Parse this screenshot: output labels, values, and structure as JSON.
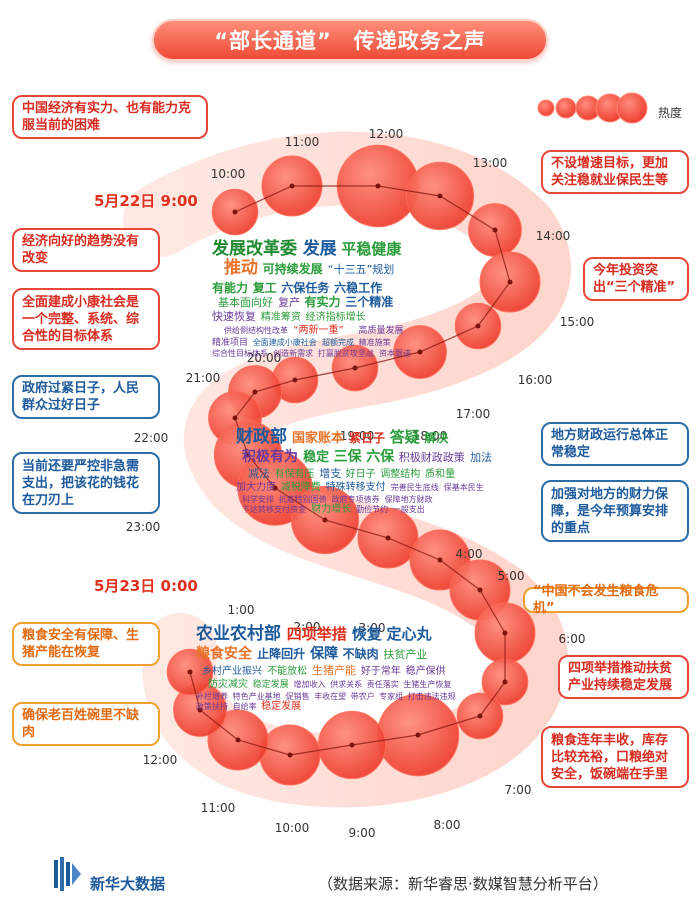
{
  "title": {
    "part1": "“部长通道”",
    "part2": "传递政务之声"
  },
  "legend": {
    "label": "热度"
  },
  "dates": {
    "day1": "5月22日 9:00",
    "day2": "5月23日 0:00"
  },
  "notes_left": [
    {
      "text": "中国经济有实力、也有能力克服当前的困难",
      "color": "red"
    },
    {
      "text": "经济向好的趋势没有改变",
      "color": "red"
    },
    {
      "text": "全面建成小康社会是一个完整、系统、综合性的目标体系",
      "color": "red"
    },
    {
      "text": "政府过紧日子，人民群众过好日子",
      "color": "blue"
    },
    {
      "text": "当前还要严控非急需支出，把该花的钱花在刀刃上",
      "color": "blue"
    },
    {
      "text": "粮食安全有保障、生猪产能在恢复",
      "color": "orange"
    },
    {
      "text": "确保老百姓碗里不缺肉",
      "color": "orange"
    }
  ],
  "notes_right": [
    {
      "text": "不设增速目标，更加关注稳就业保民生等",
      "color": "red"
    },
    {
      "text": "今年投资突出“三个精准”",
      "color": "red"
    },
    {
      "text": "地方财政运行总体正常稳定",
      "color": "blue"
    },
    {
      "text": "加强对地方的财力保障，是今年预算安排的重点",
      "color": "blue"
    },
    {
      "text": "“中国不会发生粮食危机”",
      "color": "orange"
    },
    {
      "text": "四项举措推动扶贫产业持续稳定发展",
      "color": "red"
    },
    {
      "text": "粮食连年丰收，库存比较充裕，口粮绝对安全，饭碗端在手里",
      "color": "red"
    }
  ],
  "clusters": [
    {
      "name": "发展改革委",
      "color": "#2a9d3a",
      "words": [
        {
          "t": "发展改革委",
          "s": 17,
          "c": "#1f8a2f"
        },
        {
          "t": "发展",
          "s": 17,
          "c": "#1d5a9c"
        },
        {
          "t": "平稳健康",
          "s": 15,
          "c": "#2a9d3a"
        },
        {
          "t": "推动",
          "s": 17,
          "c": "#e8732a"
        },
        {
          "t": "可持续发展",
          "s": 12,
          "c": "#2a9d3a"
        },
        {
          "t": "“十三五”规划",
          "s": 11,
          "c": "#1d5a9c"
        },
        {
          "t": "有能力",
          "s": 12,
          "c": "#2a9d3a"
        },
        {
          "t": "复工",
          "s": 12,
          "c": "#2a9d3a"
        },
        {
          "t": "六保任务",
          "s": 12,
          "c": "#1d5a9c"
        },
        {
          "t": "六稳工作",
          "s": 12,
          "c": "#1d5a9c"
        },
        {
          "t": "基本面向好",
          "s": 11,
          "c": "#2a9d3a"
        },
        {
          "t": "复产",
          "s": 11,
          "c": "#6a3a9a"
        },
        {
          "t": "有实力",
          "s": 12,
          "c": "#2a9d3a"
        },
        {
          "t": "三个精准",
          "s": 12,
          "c": "#1d5a9c"
        },
        {
          "t": "快速恢复",
          "s": 11,
          "c": "#6a3a9a"
        },
        {
          "t": "精准筹资",
          "s": 10,
          "c": "#2a9d3a"
        },
        {
          "t": "经济指标增长",
          "s": 10,
          "c": "#2a9d3a"
        },
        {
          "t": "供给侧结构性改革",
          "s": 8,
          "c": "#6a3a9a"
        },
        {
          "t": "“两新一重”",
          "s": 10,
          "c": "#e0301e"
        },
        {
          "t": "高质量发展",
          "s": 9,
          "c": "#6a3a9a"
        },
        {
          "t": "精准项目",
          "s": 9,
          "c": "#6a3a9a"
        },
        {
          "t": "全面建成小康社会",
          "s": 8,
          "c": "#1d5a9c"
        },
        {
          "t": "超额完成",
          "s": 8,
          "c": "#1d5a9c"
        },
        {
          "t": "精准施策",
          "s": 8,
          "c": "#6a3a9a"
        },
        {
          "t": "综合性目标体系",
          "s": 8,
          "c": "#6a3a9a"
        },
        {
          "t": "创造新需求",
          "s": 8,
          "c": "#6a3a9a"
        },
        {
          "t": "打赢脱贫攻坚战",
          "s": 8,
          "c": "#6a3a9a"
        },
        {
          "t": "资本跟进",
          "s": 8,
          "c": "#6a3a9a"
        },
        {
          "t": "通过投资补短板",
          "s": 8,
          "c": "#1d5a9c"
        },
        {
          "t": "扩大内需",
          "s": 10,
          "c": "#2a9d3a"
        }
      ]
    },
    {
      "name": "财政部",
      "color": "#1d5a9c",
      "words": [
        {
          "t": "财政部",
          "s": 17,
          "c": "#1d5a9c"
        },
        {
          "t": "国家账本",
          "s": 13,
          "c": "#e8732a"
        },
        {
          "t": "紧日子",
          "s": 12,
          "c": "#e0301e"
        },
        {
          "t": "答疑",
          "s": 15,
          "c": "#2a9d3a"
        },
        {
          "t": "解决",
          "s": 12,
          "c": "#2a9d3a"
        },
        {
          "t": "积极有为",
          "s": 14,
          "c": "#6a3a9a"
        },
        {
          "t": "稳定",
          "s": 13,
          "c": "#2a9d3a"
        },
        {
          "t": "三保",
          "s": 14,
          "c": "#2a9d3a"
        },
        {
          "t": "六保",
          "s": 14,
          "c": "#2a9d3a"
        },
        {
          "t": "积极财政政策",
          "s": 11,
          "c": "#6a3a9a"
        },
        {
          "t": "加法",
          "s": 11,
          "c": "#1d5a9c"
        },
        {
          "t": "减法",
          "s": 11,
          "c": "#1d5a9c"
        },
        {
          "t": "有保有压",
          "s": 10,
          "c": "#2a9d3a"
        },
        {
          "t": "增支",
          "s": 11,
          "c": "#1d5a9c"
        },
        {
          "t": "好日子",
          "s": 10,
          "c": "#2a9d3a"
        },
        {
          "t": "调整结构",
          "s": 10,
          "c": "#2a9d3a"
        },
        {
          "t": "质和量",
          "s": 10,
          "c": "#2a9d3a"
        },
        {
          "t": "加大力度",
          "s": 10,
          "c": "#6a3a9a"
        },
        {
          "t": "减税降费",
          "s": 10,
          "c": "#2a9d3a"
        },
        {
          "t": "特殊转移支付",
          "s": 10,
          "c": "#1d5a9c"
        },
        {
          "t": "完善民生底线",
          "s": 8,
          "c": "#6a3a9a"
        },
        {
          "t": "保基本民生",
          "s": 8,
          "c": "#6a3a9a"
        },
        {
          "t": "科学安排",
          "s": 8,
          "c": "#6a3a9a"
        },
        {
          "t": "抗疫特别国债",
          "s": 8,
          "c": "#6a3a9a"
        },
        {
          "t": "政府专项债券",
          "s": 8,
          "c": "#6a3a9a"
        },
        {
          "t": "保障地方财政",
          "s": 8,
          "c": "#6a3a9a"
        },
        {
          "t": "下达转移支付资金",
          "s": 8,
          "c": "#6a3a9a"
        },
        {
          "t": "财力增长",
          "s": 10,
          "c": "#2a9d3a"
        },
        {
          "t": "勤俭节约",
          "s": 8,
          "c": "#6a3a9a"
        },
        {
          "t": "一般支出",
          "s": 8,
          "c": "#6a3a9a"
        }
      ]
    },
    {
      "name": "农业农村部",
      "color": "#6a3a9a",
      "words": [
        {
          "t": "农业农村部",
          "s": 17,
          "c": "#1d5a9c"
        },
        {
          "t": "四项举措",
          "s": 15,
          "c": "#e0301e"
        },
        {
          "t": "恢复",
          "s": 15,
          "c": "#1d5a9c"
        },
        {
          "t": "定心丸",
          "s": 15,
          "c": "#1d5a9c"
        },
        {
          "t": "粮食安全",
          "s": 14,
          "c": "#e8732a"
        },
        {
          "t": "止降回升",
          "s": 12,
          "c": "#1d5a9c"
        },
        {
          "t": "保障",
          "s": 14,
          "c": "#1d5a9c"
        },
        {
          "t": "不缺肉",
          "s": 12,
          "c": "#1d5a9c"
        },
        {
          "t": "扶贫产业",
          "s": 11,
          "c": "#2a9d3a"
        },
        {
          "t": "乡村产业振兴",
          "s": 10,
          "c": "#1d5a9c"
        },
        {
          "t": "不能放松",
          "s": 10,
          "c": "#2a9d3a"
        },
        {
          "t": "生猪产能",
          "s": 11,
          "c": "#e8732a"
        },
        {
          "t": "好于常年",
          "s": 10,
          "c": "#6a3a9a"
        },
        {
          "t": "稳产保供",
          "s": 10,
          "c": "#6a3a9a"
        },
        {
          "t": "防灾减灾",
          "s": 10,
          "c": "#2a9d3a"
        },
        {
          "t": "稳定发展",
          "s": 9,
          "c": "#2a9d3a"
        },
        {
          "t": "增加收入",
          "s": 8,
          "c": "#6a3a9a"
        },
        {
          "t": "供求关系",
          "s": 8,
          "c": "#6a3a9a"
        },
        {
          "t": "责任落实",
          "s": 8,
          "c": "#6a3a9a"
        },
        {
          "t": "生猪生产恢复",
          "s": 8,
          "c": "#6a3a9a"
        },
        {
          "t": "补栏增养",
          "s": 8,
          "c": "#6a3a9a"
        },
        {
          "t": "特色产业基地",
          "s": 8,
          "c": "#6a3a9a"
        },
        {
          "t": "促销售",
          "s": 8,
          "c": "#6a3a9a"
        },
        {
          "t": "丰收在望",
          "s": 8,
          "c": "#6a3a9a"
        },
        {
          "t": "带农户",
          "s": 8,
          "c": "#6a3a9a"
        },
        {
          "t": "专家组",
          "s": 8,
          "c": "#6a3a9a"
        },
        {
          "t": "打击违法违规",
          "s": 8,
          "c": "#6a3a9a"
        },
        {
          "t": "政策扶持",
          "s": 8,
          "c": "#6a3a9a"
        },
        {
          "t": "自给率",
          "s": 8,
          "c": "#6a3a9a"
        },
        {
          "t": "稳定发展",
          "s": 10,
          "c": "#e0301e"
        }
      ]
    }
  ],
  "chart_data": {
    "type": "scatter",
    "title": "“部长通道” 传递政务之声",
    "subtitle": "",
    "xlabel": "",
    "ylabel": "",
    "legend": {
      "label": "热度",
      "position": "top-right"
    },
    "series": [
      {
        "x": [
          "10:00",
          "11:00",
          "12:00",
          "13:00",
          "14:00",
          "15:00",
          "16:00",
          "17:00",
          "18:00",
          "19:00",
          "20:00",
          "21:00",
          "22:00",
          "23:00",
          "0:00",
          "1:00",
          "2:00",
          "3:00",
          "4:00",
          "5:00",
          "6:00",
          "7:00",
          "8:00",
          "9:00",
          "10:00",
          "11:00",
          "12:00"
        ],
        "heat": [
          3,
          5,
          8,
          6,
          4,
          5,
          3,
          4,
          3,
          3,
          4,
          4,
          6,
          7,
          6,
          5,
          5,
          5,
          5,
          3,
          3,
          8,
          6,
          5,
          5,
          4,
          3
        ]
      }
    ],
    "time_labels": [
      "10:00",
      "11:00",
      "12:00",
      "13:00",
      "14:00",
      "15:00",
      "16:00",
      "17:00",
      "18:00",
      "19:00",
      "20:00",
      "21:00",
      "22:00",
      "23:00",
      "4:00",
      "5:00",
      "6:00",
      "7:00",
      "8:00",
      "9:00",
      "10:00",
      "11:00",
      "12:00",
      "1:00",
      "2:00",
      "3:00"
    ],
    "grid": false
  },
  "source": "（数据来源：新华睿思·数媒智慧分析平台）",
  "logo": "新华大数据",
  "colors": {
    "accent": "#e8473a",
    "blue": "#1d5a9c",
    "orange": "#f0a030"
  }
}
